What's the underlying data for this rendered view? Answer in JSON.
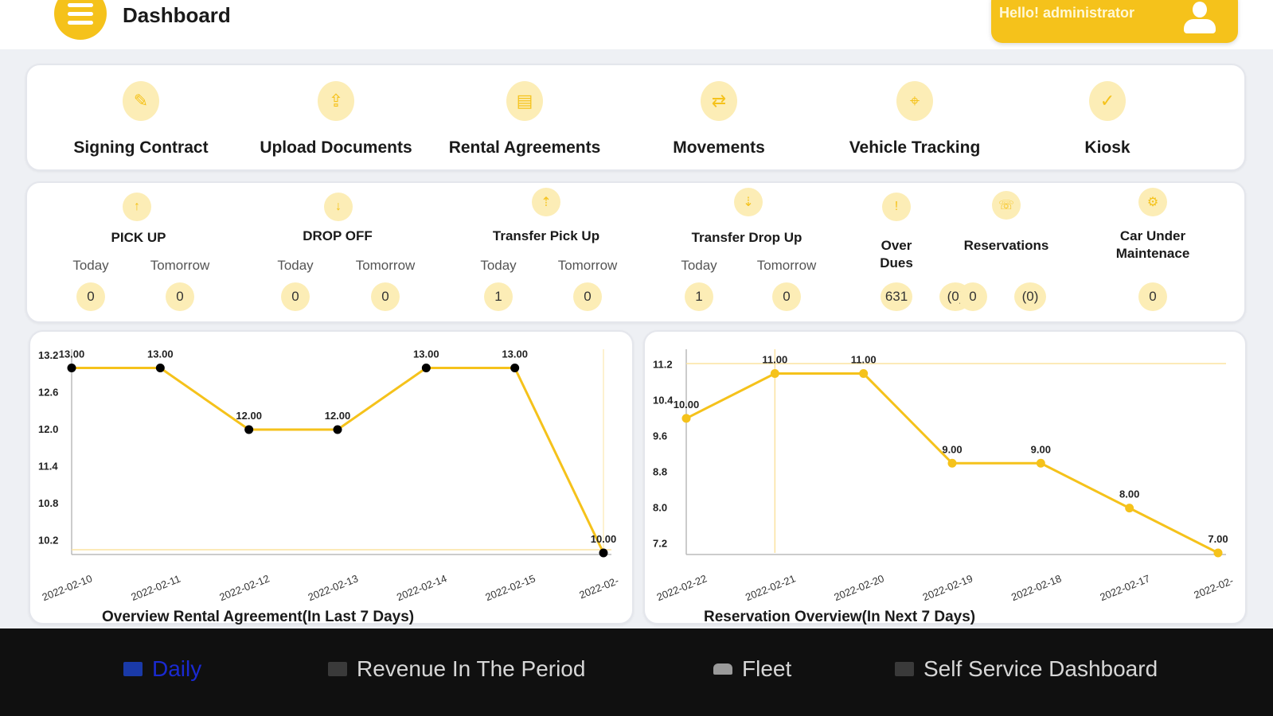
{
  "header": {
    "title": "Dashboard",
    "greeting": "Hello! administrator"
  },
  "quick_actions": [
    {
      "label": "Signing Contract",
      "icon": "contract-icon"
    },
    {
      "label": "Upload Documents",
      "icon": "upload-document-icon"
    },
    {
      "label": "Rental Agreements",
      "icon": "rental-agreement-icon"
    },
    {
      "label": "Movements",
      "icon": "car-movement-icon"
    },
    {
      "label": "Vehicle Tracking",
      "icon": "location-pin-icon"
    },
    {
      "label": "Kiosk",
      "icon": "kiosk-check-icon"
    }
  ],
  "stats": {
    "today_label": "Today",
    "tomorrow_label": "Tomorrow",
    "pickup": {
      "title": "PICK UP",
      "today": "0",
      "tomorrow": "0"
    },
    "dropoff": {
      "title": "DROP OFF",
      "today": "0",
      "tomorrow": "0"
    },
    "transfer_pickup": {
      "title": "Transfer Pick Up",
      "today": "1",
      "tomorrow": "0"
    },
    "transfer_dropup": {
      "title": "Transfer Drop Up",
      "today": "1",
      "tomorrow": "0"
    },
    "overdues": {
      "title": "Over Dues",
      "value": "631",
      "extra": "(0)"
    },
    "reservations": {
      "title": "Reservations",
      "value": "0",
      "extra": "(0)"
    },
    "car_under_maintenance": {
      "title": "Car Under Maintenace",
      "value": "0"
    }
  },
  "chart_data": [
    {
      "type": "line",
      "title": "Overview Rental Agreement(In Last 7 Days)",
      "x": [
        "2022-02-10",
        "2022-02-11",
        "2022-02-12",
        "2022-02-13",
        "2022-02-14",
        "2022-02-15",
        "2022-02-"
      ],
      "values": [
        13.0,
        13.0,
        12.0,
        12.0,
        13.0,
        13.0,
        10.0
      ],
      "data_labels": [
        "13.00",
        "13.00",
        "12.00",
        "12.00",
        "13.00",
        "13.00",
        "10.00"
      ],
      "y_ticks": [
        "13.2",
        "12.6",
        "12.0",
        "11.4",
        "10.8",
        "10.2"
      ],
      "ylim": [
        10.0,
        13.2
      ],
      "line_color": "#f5c21b",
      "marker_color": "#000000"
    },
    {
      "type": "line",
      "title": "Reservation Overview(In Next 7 Days)",
      "x": [
        "2022-02-22",
        "2022-02-21",
        "2022-02-20",
        "2022-02-19",
        "2022-02-18",
        "2022-02-17",
        "2022-02-"
      ],
      "values": [
        10.0,
        11.0,
        11.0,
        9.0,
        9.0,
        8.0,
        7.0
      ],
      "data_labels": [
        "10.00",
        "11.00",
        "11.00",
        "9.00",
        "9.00",
        "8.00",
        "7.00"
      ],
      "y_ticks": [
        "11.2",
        "10.4",
        "9.6",
        "8.8",
        "8.0",
        "7.2"
      ],
      "ylim": [
        7.0,
        11.4
      ],
      "line_color": "#f5c21b",
      "marker_color": "#f5c21b"
    }
  ],
  "bottom_nav": {
    "daily": "Daily",
    "revenue": "Revenue In The Period",
    "fleet": "Fleet",
    "self_service": "Self Service Dashboard"
  },
  "colors": {
    "accent": "#f5c21b",
    "accent_light": "#fcedb6",
    "nav_background": "#101010",
    "nav_active": "#1a2ad1"
  }
}
